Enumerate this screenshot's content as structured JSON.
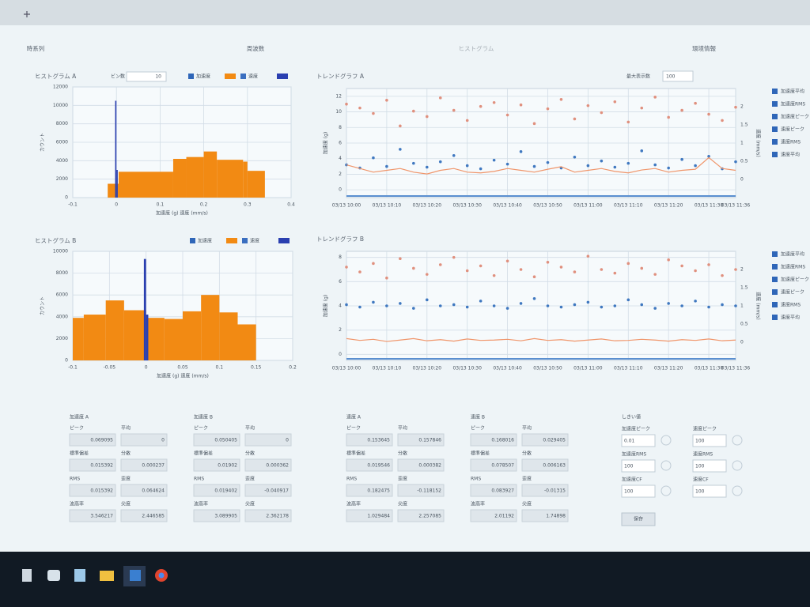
{
  "tabs": [
    "時系列",
    "周波数",
    "ヒストグラム",
    "環境情報"
  ],
  "controls": {
    "bin_label": "ビン数",
    "bin_value": 10,
    "max_label": "最大表示数",
    "max_value": 100
  },
  "trend_options": [
    "加速度平均",
    "加速度RMS",
    "加速度ピーク",
    "速度ピーク",
    "速度RMS",
    "速度平均"
  ],
  "chart_data": [
    {
      "type": "histogram",
      "title": "ヒストグラム A",
      "xlabel": "加速度 (g)  速度 (mm/s)",
      "ylabel": "カウント",
      "xlim": [
        -0.1,
        0.4
      ],
      "xticks": [
        -0.1,
        0,
        0.1,
        0.2,
        0.3,
        0.4
      ],
      "ylim": [
        0,
        12000
      ],
      "yticks": [
        0,
        2000,
        4000,
        6000,
        8000,
        10000,
        12000
      ],
      "grid": true,
      "series": [
        {
          "name": "加速度",
          "color": "#f28a13",
          "bins": [
            -0.02,
            0.005,
            0.13,
            0.16,
            0.2,
            0.23,
            0.29,
            0.3,
            0.34
          ],
          "values": [
            1500,
            2800,
            4200,
            4400,
            5000,
            4100,
            3900,
            2900
          ]
        },
        {
          "name": "速度",
          "color": "#2a3fb0",
          "bins": [
            -0.003,
            0,
            0.003
          ],
          "values": [
            10500,
            3000
          ]
        }
      ]
    },
    {
      "type": "histogram",
      "title": "ヒストグラム B",
      "xlabel": "加速度 (g)  速度 (mm/s)",
      "ylabel": "カウント",
      "xlim": [
        -0.1,
        0.2
      ],
      "xticks": [
        -0.1,
        -0.05,
        0,
        0.05,
        0.1,
        0.15,
        0.2
      ],
      "ylim": [
        0,
        10000
      ],
      "yticks": [
        0,
        2000,
        4000,
        6000,
        8000,
        10000
      ],
      "grid": true,
      "series": [
        {
          "name": "加速度",
          "color": "#f28a13",
          "bins": [
            -0.1,
            -0.085,
            -0.055,
            -0.03,
            0,
            0.025,
            0.05,
            0.075,
            0.1,
            0.125,
            0.15
          ],
          "values": [
            3900,
            4200,
            5500,
            4600,
            3900,
            3800,
            4500,
            6000,
            4400,
            3300
          ]
        },
        {
          "name": "速度",
          "color": "#2a3fb0",
          "bins": [
            -0.003,
            0,
            0.003
          ],
          "values": [
            9300,
            4200
          ]
        }
      ]
    },
    {
      "type": "line",
      "title": "トレンドグラフ A",
      "ylabel": "加速度 (g)",
      "y2label": "速度 (mm/s)",
      "categories": [
        "03/13 10:00",
        null,
        null,
        "03/13 10:10",
        null,
        null,
        "03/13 10:20",
        null,
        null,
        "03/13 10:30",
        null,
        null,
        "03/13 10:40",
        null,
        null,
        "03/13 10:50",
        null,
        null,
        "03/13 11:00",
        null,
        null,
        "03/13 11:10",
        null,
        null,
        "03/13 11:20",
        null,
        null,
        "03/13 11:30",
        null,
        "03/13 11:36"
      ],
      "ylim": [
        -1,
        13
      ],
      "yticks": [
        0,
        2,
        4,
        6,
        8,
        10,
        12
      ],
      "y2lim": [
        -0.5,
        2.5
      ],
      "y2ticks": [
        0,
        0.5,
        1,
        1.5,
        2
      ],
      "grid": true,
      "series": [
        {
          "name": "加速度ピーク",
          "color": "#e0907e",
          "style": "markers",
          "values": [
            11,
            10.5,
            9.8,
            11.5,
            8.2,
            10.1,
            9.4,
            11.8,
            10.2,
            8.9,
            10.7,
            11.2,
            9.6,
            10.9,
            8.5,
            10.4,
            11.6,
            9.1,
            10.8,
            9.9,
            11.3,
            8.7,
            10.5,
            11.9,
            9.3,
            10.2,
            11.1,
            9.7,
            8.9,
            10.6
          ]
        },
        {
          "name": "加速度平均",
          "color": "#3f78c0",
          "style": "markers",
          "values": [
            3.2,
            2.8,
            4.1,
            3.0,
            5.2,
            3.4,
            2.9,
            3.6,
            4.4,
            3.1,
            2.7,
            3.8,
            3.3,
            4.9,
            3.0,
            3.5,
            2.8,
            4.2,
            3.1,
            3.7,
            2.9,
            3.4,
            5.0,
            3.2,
            2.8,
            3.9,
            3.1,
            4.3,
            2.7,
            3.6
          ]
        },
        {
          "name": "速度RMS",
          "color": "#f0956a",
          "style": "line",
          "axis": "y2",
          "values": [
            0.4,
            0.3,
            0.2,
            0.25,
            0.3,
            0.2,
            0.15,
            0.25,
            0.3,
            0.2,
            0.18,
            0.22,
            0.3,
            0.25,
            0.2,
            0.28,
            0.35,
            0.2,
            0.25,
            0.3,
            0.22,
            0.18,
            0.26,
            0.3,
            0.2,
            0.25,
            0.28,
            0.6,
            0.3,
            0.25
          ]
        }
      ]
    },
    {
      "type": "line",
      "title": "トレンドグラフ B",
      "ylabel": "加速度 (g)",
      "y2label": "速度 (mm/s)",
      "categories": [
        "03/13 10:00",
        null,
        null,
        "03/13 10:10",
        null,
        null,
        "03/13 10:20",
        null,
        null,
        "03/13 10:30",
        null,
        null,
        "03/13 10:40",
        null,
        null,
        "03/13 10:50",
        null,
        null,
        "03/13 11:00",
        null,
        null,
        "03/13 11:10",
        null,
        null,
        "03/13 11:20",
        null,
        null,
        "03/13 11:30",
        null,
        "03/13 11:36"
      ],
      "ylim": [
        -0.5,
        8.5
      ],
      "yticks": [
        0,
        2,
        4,
        6,
        8
      ],
      "y2lim": [
        -0.5,
        2.5
      ],
      "y2ticks": [
        0,
        0.5,
        1,
        1.5,
        2
      ],
      "grid": true,
      "series": [
        {
          "name": "加速度ピーク",
          "color": "#e0907e",
          "style": "markers",
          "values": [
            7.2,
            6.8,
            7.5,
            6.3,
            7.9,
            7.1,
            6.6,
            7.4,
            8.0,
            6.9,
            7.3,
            6.5,
            7.7,
            7.0,
            6.4,
            7.6,
            7.2,
            6.8,
            8.1,
            7.0,
            6.7,
            7.5,
            7.1,
            6.6,
            7.8,
            7.3,
            6.9,
            7.4,
            6.5,
            7.0
          ]
        },
        {
          "name": "加速度平均",
          "color": "#3f78c0",
          "style": "markers",
          "values": [
            4.1,
            3.9,
            4.3,
            4.0,
            4.2,
            3.8,
            4.5,
            4.0,
            4.1,
            3.9,
            4.4,
            4.0,
            3.8,
            4.2,
            4.6,
            4.0,
            3.9,
            4.1,
            4.3,
            3.9,
            4.0,
            4.5,
            4.1,
            3.8,
            4.2,
            4.0,
            4.4,
            3.9,
            4.1,
            4.0
          ]
        },
        {
          "name": "速度RMS",
          "color": "#f0956a",
          "style": "line",
          "axis": "y2",
          "values": [
            0.1,
            0.05,
            0.08,
            0.02,
            0.06,
            0.1,
            0.04,
            0.07,
            0.03,
            0.09,
            0.05,
            0.06,
            0.08,
            0.04,
            0.1,
            0.05,
            0.07,
            0.03,
            0.06,
            0.09,
            0.04,
            0.05,
            0.08,
            0.06,
            0.03,
            0.07,
            0.05,
            0.09,
            0.04,
            0.06
          ]
        }
      ]
    }
  ],
  "stats": [
    {
      "title": "加速度 A",
      "fields": [
        {
          "label": "ピーク",
          "value": 0.069095
        },
        {
          "label": "平均",
          "value": 0
        },
        {
          "label": "標準偏差",
          "value": 0.015392
        },
        {
          "label": "分散",
          "value": 0.000237
        },
        {
          "label": "RMS",
          "value": 0.015392
        },
        {
          "label": "歪度",
          "value": 0.064624
        },
        {
          "label": "波高率",
          "value": 3.546217
        },
        {
          "label": "尖度",
          "value": 2.446585
        }
      ]
    },
    {
      "title": "加速度 B",
      "fields": [
        {
          "label": "ピーク",
          "value": 0.050405
        },
        {
          "label": "平均",
          "value": 0
        },
        {
          "label": "標準偏差",
          "value": 0.01902
        },
        {
          "label": "分散",
          "value": 0.000362
        },
        {
          "label": "RMS",
          "value": 0.019402
        },
        {
          "label": "歪度",
          "value": -0.040917
        },
        {
          "label": "波高率",
          "value": 3.089905
        },
        {
          "label": "尖度",
          "value": 2.362178
        }
      ]
    },
    {
      "title": "速度 A",
      "fields": [
        {
          "label": "ピーク",
          "value": 0.153645
        },
        {
          "label": "平均",
          "value": 0.157846
        },
        {
          "label": "標準偏差",
          "value": 0.019546
        },
        {
          "label": "分散",
          "value": 0.000382
        },
        {
          "label": "RMS",
          "value": 0.182475
        },
        {
          "label": "歪度",
          "value": -0.118152
        },
        {
          "label": "波高率",
          "value": 1.029484
        },
        {
          "label": "尖度",
          "value": 2.257085
        }
      ]
    },
    {
      "title": "速度 B",
      "fields": [
        {
          "label": "ピーク",
          "value": 0.168016
        },
        {
          "label": "平均",
          "value": 0.029405
        },
        {
          "label": "標準偏差",
          "value": 0.078507
        },
        {
          "label": "分散",
          "value": 0.006163
        },
        {
          "label": "RMS",
          "value": 0.083927
        },
        {
          "label": "歪度",
          "value": -0.01315
        },
        {
          "label": "波高率",
          "value": 2.01192
        },
        {
          "label": "尖度",
          "value": 1.74898
        }
      ]
    }
  ],
  "thresholds": {
    "title": "しきい値",
    "items": [
      {
        "label": "加速度ピーク",
        "value": 0.01
      },
      {
        "label": "速度ピーク",
        "value": 100
      },
      {
        "label": "加速度RMS",
        "value": 100
      },
      {
        "label": "速度RMS",
        "value": 100
      },
      {
        "label": "加速度CF",
        "value": 100
      },
      {
        "label": "速度CF",
        "value": 100
      }
    ],
    "button": "保存"
  }
}
